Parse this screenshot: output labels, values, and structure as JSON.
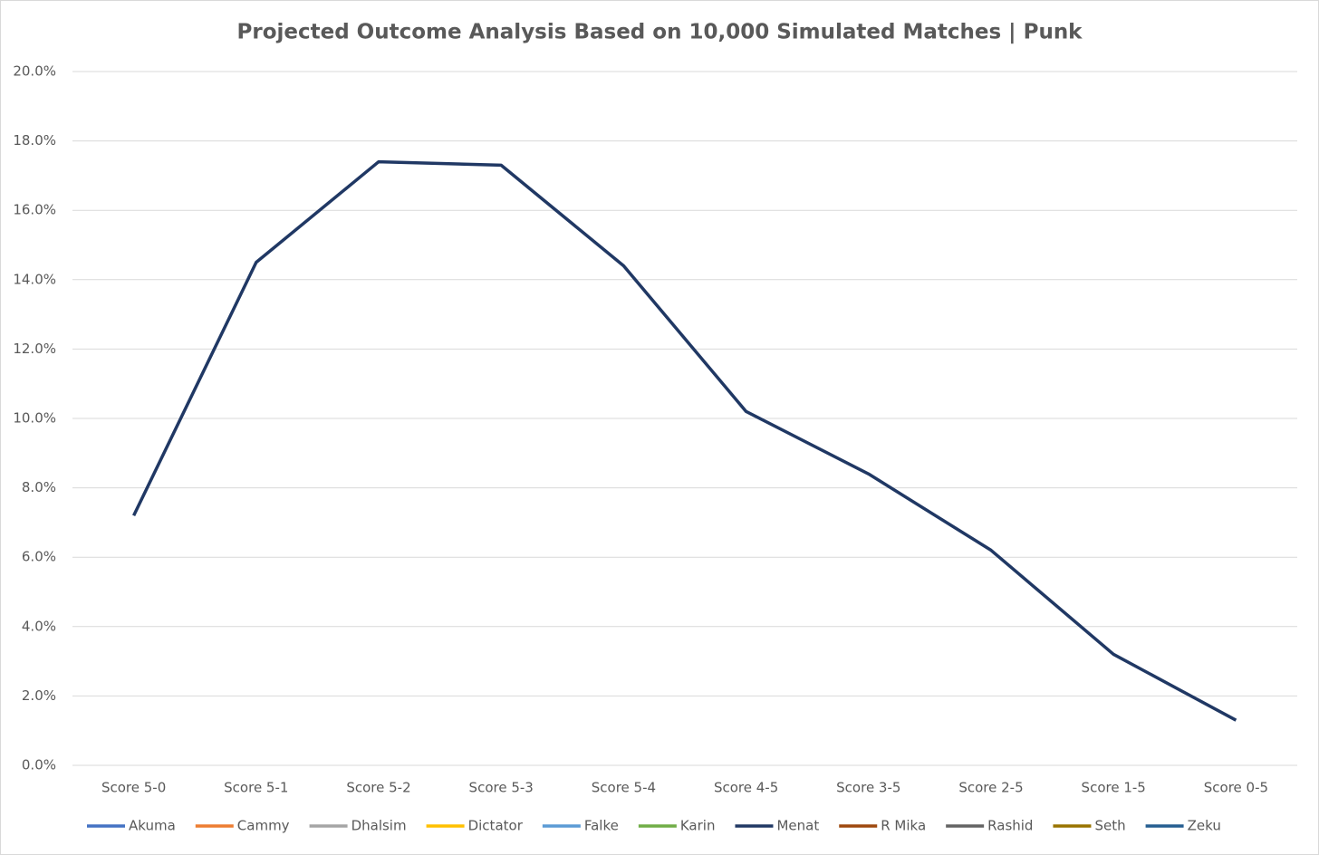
{
  "chart_data": {
    "type": "line",
    "title": "Projected Outcome Analysis Based on 10,000 Simulated Matches | Punk",
    "categories": [
      "Score 5-0",
      "Score 5-1",
      "Score 5-2",
      "Score 5-3",
      "Score 5-4",
      "Score 4-5",
      "Score 3-5",
      "Score 2-5",
      "Score 1-5",
      "Score 0-5"
    ],
    "series": [
      {
        "name": "Akuma",
        "color": "#4472c4",
        "values": [
          null,
          null,
          null,
          null,
          null,
          null,
          null,
          null,
          null,
          null
        ]
      },
      {
        "name": "Cammy",
        "color": "#ed7d31",
        "values": [
          null,
          null,
          null,
          null,
          null,
          null,
          null,
          null,
          null,
          null
        ]
      },
      {
        "name": "Dhalsim",
        "color": "#a5a5a5",
        "values": [
          null,
          null,
          null,
          null,
          null,
          null,
          null,
          null,
          null,
          null
        ]
      },
      {
        "name": "Dictator",
        "color": "#ffc000",
        "values": [
          null,
          null,
          null,
          null,
          null,
          null,
          null,
          null,
          null,
          null
        ]
      },
      {
        "name": "Falke",
        "color": "#5b9bd5",
        "values": [
          null,
          null,
          null,
          null,
          null,
          null,
          null,
          null,
          null,
          null
        ]
      },
      {
        "name": "Karin",
        "color": "#70ad47",
        "values": [
          null,
          null,
          null,
          null,
          null,
          null,
          null,
          null,
          null,
          null
        ]
      },
      {
        "name": "Menat",
        "color": "#203864",
        "values": [
          7.2,
          14.5,
          17.4,
          17.3,
          14.4,
          10.2,
          8.4,
          6.2,
          3.2,
          1.3
        ]
      },
      {
        "name": "R Mika",
        "color": "#9e480e",
        "values": [
          null,
          null,
          null,
          null,
          null,
          null,
          null,
          null,
          null,
          null
        ]
      },
      {
        "name": "Rashid",
        "color": "#636363",
        "values": [
          null,
          null,
          null,
          null,
          null,
          null,
          null,
          null,
          null,
          null
        ]
      },
      {
        "name": "Seth",
        "color": "#997300",
        "values": [
          null,
          null,
          null,
          null,
          null,
          null,
          null,
          null,
          null,
          null
        ]
      },
      {
        "name": "Zeku",
        "color": "#255e91",
        "values": [
          null,
          null,
          null,
          null,
          null,
          null,
          null,
          null,
          null,
          null
        ]
      }
    ],
    "ylim": [
      0,
      20
    ],
    "yticks": [
      {
        "value": 0,
        "label": "0.0%"
      },
      {
        "value": 2,
        "label": "2.0%"
      },
      {
        "value": 4,
        "label": "4.0%"
      },
      {
        "value": 6,
        "label": "6.0%"
      },
      {
        "value": 8,
        "label": "8.0%"
      },
      {
        "value": 10,
        "label": "10.0%"
      },
      {
        "value": 12,
        "label": "12.0%"
      },
      {
        "value": 14,
        "label": "14.0%"
      },
      {
        "value": 16,
        "label": "16.0%"
      },
      {
        "value": 18,
        "label": "18.0%"
      },
      {
        "value": 20,
        "label": "20.0%"
      }
    ],
    "grid": true,
    "legend": "bottom"
  }
}
